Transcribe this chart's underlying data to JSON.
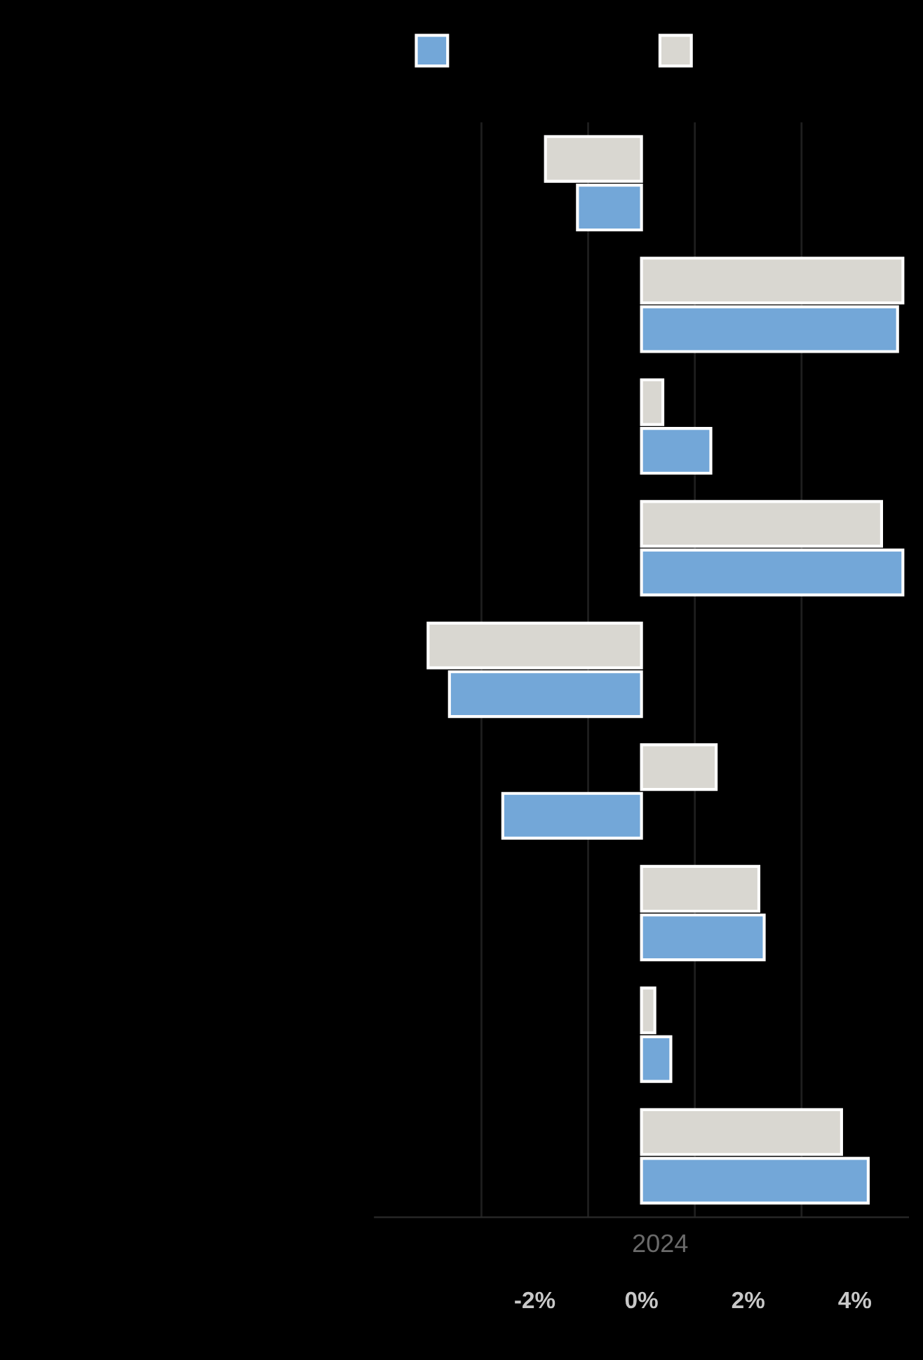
{
  "chart_data": {
    "type": "bar",
    "orientation": "horizontal",
    "xlabel": "2024",
    "categories": [
      null,
      null,
      null,
      null,
      null,
      null,
      null,
      null,
      null
    ],
    "series": [
      {
        "color": "#d9d7d1",
        "values": [
          -1.8,
          4.9,
          0.4,
          4.5,
          -4.0,
          1.4,
          2.2,
          0.25,
          3.75
        ]
      },
      {
        "color": "#73a7d8",
        "values": [
          -1.2,
          4.8,
          1.3,
          4.9,
          -3.6,
          -2.6,
          2.3,
          0.55,
          4.25
        ]
      }
    ],
    "xlim": [
      -5,
      5
    ],
    "xticks": [
      {
        "value": -3,
        "label": null
      },
      {
        "value": -2,
        "label": "-2%"
      },
      {
        "value": -1,
        "label": null
      },
      {
        "value": 0,
        "label": "0%"
      },
      {
        "value": 1,
        "label": null
      },
      {
        "value": 2,
        "label": "2%"
      },
      {
        "value": 3,
        "label": null
      },
      {
        "value": 4,
        "label": "4%"
      }
    ],
    "grid": "x"
  }
}
